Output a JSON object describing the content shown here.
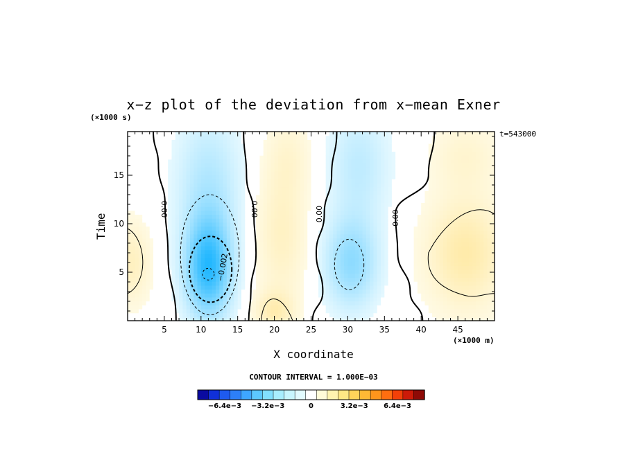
{
  "chart_data": {
    "type": "heatmap",
    "title": "x−z plot of the deviation from x−mean Exner",
    "xlabel": "X coordinate",
    "ylabel": "Time",
    "x_unit": "(×1000 m)",
    "y_unit": "(×1000 s)",
    "time_label": "t=543000",
    "xlim": [
      0,
      50
    ],
    "ylim": [
      0,
      19.5
    ],
    "x_ticks": [
      5,
      10,
      15,
      20,
      25,
      30,
      35,
      40,
      45
    ],
    "y_ticks": [
      5,
      10,
      15
    ],
    "contour_interval_text": "CONTOUR INTERVAL = 1.000E−03",
    "colorbar_labels": [
      "−6.4e−3",
      "−3.2e−3",
      "0",
      "3.2e−3",
      "6.4e−3"
    ],
    "contour_labels": [
      "0.00",
      "0.00",
      "0.00",
      "0.00",
      "−0.002"
    ],
    "zero_contour_x": [
      [
        [
          3.5,
          19.5
        ],
        [
          4.2,
          16
        ],
        [
          5.1,
          12
        ],
        [
          5.5,
          7
        ],
        [
          6.6,
          0
        ]
      ],
      [
        [
          15.8,
          19.5
        ],
        [
          16.2,
          15
        ],
        [
          17.2,
          11
        ],
        [
          17.5,
          7
        ],
        [
          16.8,
          3
        ],
        [
          16.5,
          0
        ]
      ],
      [
        [
          28.5,
          19.5
        ],
        [
          27.8,
          15
        ],
        [
          26.8,
          11
        ],
        [
          25.7,
          7
        ],
        [
          26.6,
          3
        ],
        [
          25.2,
          0
        ]
      ],
      [
        [
          41.8,
          19.5
        ],
        [
          41.0,
          15
        ],
        [
          36.5,
          11
        ],
        [
          36.8,
          7
        ],
        [
          38.5,
          3
        ],
        [
          40.2,
          0
        ]
      ]
    ],
    "extrema": [
      {
        "kind": "min",
        "x": 11,
        "y": 5,
        "value": -0.003
      },
      {
        "kind": "min",
        "x": 30.5,
        "y": 6,
        "value": -0.0015
      },
      {
        "kind": "max",
        "x": 45,
        "y": 6.5,
        "value": 0.0015
      },
      {
        "kind": "max",
        "x": 20,
        "y": 9,
        "value": 0.001
      },
      {
        "kind": "max",
        "x": 20,
        "y": 1,
        "value": 0.0012
      },
      {
        "kind": "max",
        "x": 1,
        "y": 6,
        "value": 0.001
      }
    ],
    "grid": false,
    "colormap": [
      "#0a0aa0",
      "#1030d8",
      "#1e5af0",
      "#2d7ff8",
      "#3ea6ff",
      "#5cc8ff",
      "#82e0ff",
      "#a8eeff",
      "#c8f6ff",
      "#e2fbff",
      "#ffffff",
      "#fffbd8",
      "#fff4b0",
      "#ffe985",
      "#ffd45a",
      "#ffb935",
      "#ff951c",
      "#ff6e10",
      "#f24008",
      "#cc1a08",
      "#8e0a06"
    ]
  }
}
